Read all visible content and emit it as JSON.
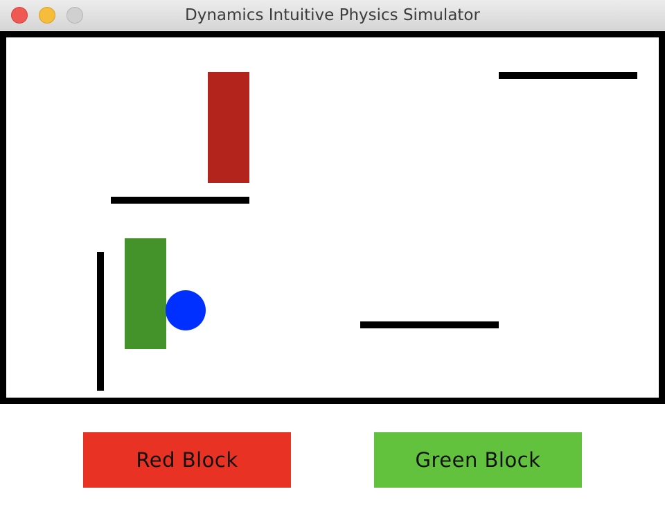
{
  "window": {
    "title": "Dynamics Intuitive Physics Simulator"
  },
  "scene": {
    "red_block": {
      "color": "#b2241c"
    },
    "green_block": {
      "color": "#44922a"
    },
    "ball": {
      "color": "#0030ff"
    },
    "wall_color": "#000000"
  },
  "buttons": {
    "red": {
      "label": "Red Block",
      "color": "#e83224"
    },
    "green": {
      "label": "Green Block",
      "color": "#62c23d"
    }
  }
}
